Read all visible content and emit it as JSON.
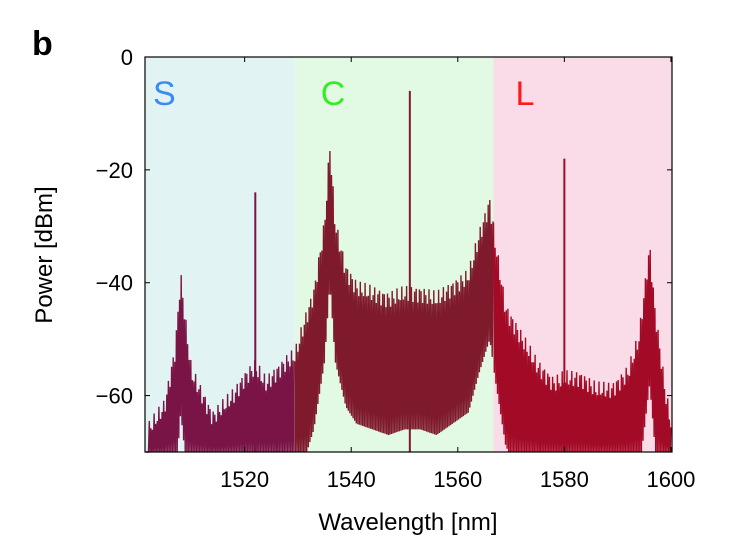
{
  "chart_data": {
    "type": "line",
    "panel_label": "b",
    "xlabel": "Wavelength [nm]",
    "ylabel": "Power [dBm]",
    "xlim": [
      1501.3,
      1600.2
    ],
    "ylim": [
      -70,
      0
    ],
    "xticks": [
      1520,
      1540,
      1560,
      1580,
      1600
    ],
    "xtick_labels": [
      "1520",
      "1540",
      "1560",
      "1580",
      "1600"
    ],
    "yticks": [
      0,
      -20,
      -40,
      -60
    ],
    "ytick_labels": [
      "0",
      "−20",
      "−40",
      "−60"
    ],
    "grid": false,
    "bands": [
      {
        "name": "S",
        "range": [
          1501.3,
          1529.4
        ],
        "bg": "#e1f4f3",
        "label_color": "#3a8cf0",
        "line_color": "#7a1446"
      },
      {
        "name": "C",
        "range": [
          1529.4,
          1566.7
        ],
        "bg": "#e2f9e3",
        "label_color": "#33ee22",
        "line_color": "#7e1a2c"
      },
      {
        "name": "L",
        "range": [
          1566.7,
          1600.2
        ],
        "bg": "#fadbe8",
        "label_color": "#ff1a1a",
        "line_color": "#a30a26"
      }
    ],
    "comb_envelope": [
      [
        1502,
        -66
      ],
      [
        1505,
        -62
      ],
      [
        1507,
        -52
      ],
      [
        1508,
        -39
      ],
      [
        1509,
        -48
      ],
      [
        1510,
        -56
      ],
      [
        1512,
        -60
      ],
      [
        1514,
        -64
      ],
      [
        1516,
        -62
      ],
      [
        1518,
        -60
      ],
      [
        1520,
        -57
      ],
      [
        1522,
        -55
      ],
      [
        1524,
        -58
      ],
      [
        1526,
        -56
      ],
      [
        1528,
        -54
      ],
      [
        1529.5,
        -53
      ],
      [
        1531,
        -48
      ],
      [
        1533,
        -42
      ],
      [
        1535,
        -30
      ],
      [
        1536,
        -16
      ],
      [
        1537,
        -30
      ],
      [
        1539,
        -38
      ],
      [
        1541,
        -41
      ],
      [
        1544,
        -42
      ],
      [
        1547,
        -43
      ],
      [
        1550,
        -42
      ],
      [
        1553,
        -42
      ],
      [
        1556,
        -43
      ],
      [
        1559,
        -41
      ],
      [
        1562,
        -39
      ],
      [
        1564,
        -32
      ],
      [
        1566,
        -26
      ],
      [
        1567,
        -33
      ],
      [
        1569,
        -45
      ],
      [
        1572,
        -50
      ],
      [
        1575,
        -55
      ],
      [
        1578,
        -58
      ],
      [
        1580,
        -57
      ],
      [
        1583,
        -57
      ],
      [
        1586,
        -59
      ],
      [
        1589,
        -59
      ],
      [
        1592,
        -56
      ],
      [
        1594,
        -50
      ],
      [
        1596,
        -34
      ],
      [
        1597,
        -45
      ],
      [
        1599,
        -60
      ],
      [
        1600.2,
        -66
      ]
    ],
    "peaks": [
      [
        1522,
        -24
      ],
      [
        1551,
        -6
      ],
      [
        1580,
        -18
      ]
    ]
  }
}
